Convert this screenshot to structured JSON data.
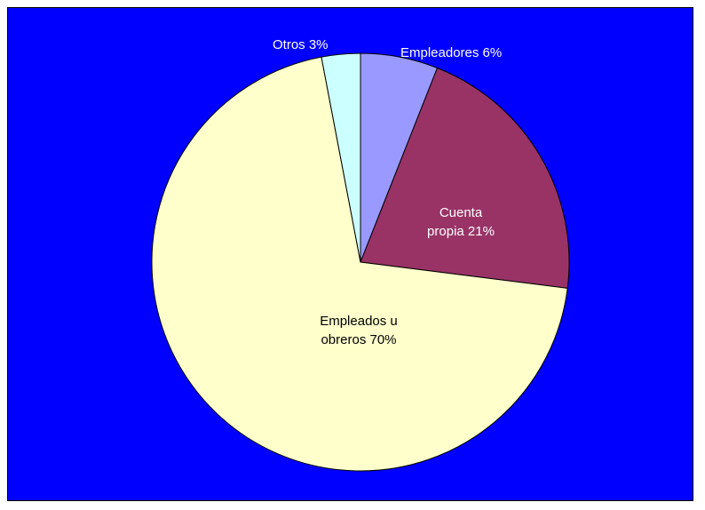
{
  "chart_data": {
    "type": "pie",
    "title": "",
    "slices": [
      {
        "label": "Empleadores 6%",
        "value": 6,
        "color": "#9999ff"
      },
      {
        "label": "Cuenta\npropia 21%",
        "value": 21,
        "color": "#993366"
      },
      {
        "label": "Empleados u\nobreros 70%",
        "value": 70,
        "color": "#ffffcc"
      },
      {
        "label": "Otros 3%",
        "value": 3,
        "color": "#ccffff"
      }
    ],
    "legend": false
  },
  "colors": {
    "background": "#0000ff",
    "slice_outline": "#000000"
  }
}
